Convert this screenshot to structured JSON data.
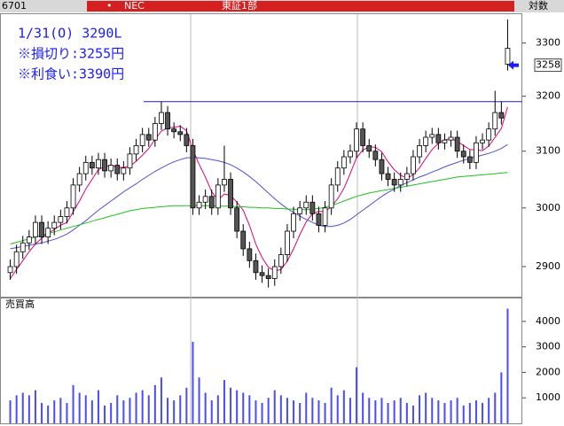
{
  "header": {
    "code": "6701",
    "bullet": "•",
    "name": "NEC",
    "market": "東証1部",
    "scale_mode": "対数"
  },
  "chart_data": [
    {
      "type": "candlestick",
      "annotations": [
        "1/31(O) 3290L",
        "※損切り:3255円",
        "※利食い:3390円"
      ],
      "open": [
        2890,
        2900,
        2925,
        2940,
        2950,
        2975,
        2950,
        2965,
        2975,
        2985,
        3000,
        3040,
        3060,
        3080,
        3070,
        3085,
        3065,
        3075,
        3060,
        3070,
        3095,
        3110,
        3130,
        3120,
        3150,
        3170,
        3140,
        3135,
        3130,
        3110,
        3000,
        3010,
        3020,
        3000,
        3040,
        3050,
        3000,
        2960,
        2930,
        2910,
        2890,
        2885,
        2880,
        2900,
        2920,
        2960,
        2990,
        3000,
        3010,
        2990,
        2970,
        3000,
        3040,
        3070,
        3090,
        3100,
        3140,
        3110,
        3100,
        3085,
        3060,
        3050,
        3040,
        3050,
        3060,
        3090,
        3110,
        3125,
        3130,
        3115,
        3120,
        3125,
        3100,
        3090,
        3080,
        3115,
        3120,
        3140,
        3170,
        3260
      ],
      "high": [
        2912,
        2937,
        2952,
        2962,
        2987,
        2987,
        2977,
        2987,
        2997,
        3012,
        3052,
        3072,
        3092,
        3092,
        3097,
        3097,
        3087,
        3087,
        3082,
        3107,
        3122,
        3142,
        3142,
        3162,
        3190,
        3182,
        3152,
        3147,
        3142,
        3122,
        3022,
        3032,
        3032,
        3052,
        3110,
        3062,
        3012,
        2972,
        2942,
        2922,
        2902,
        2897,
        2912,
        2932,
        2972,
        3002,
        3012,
        3022,
        3022,
        3002,
        3012,
        3052,
        3082,
        3102,
        3112,
        3152,
        3152,
        3122,
        3112,
        3097,
        3072,
        3062,
        3062,
        3072,
        3102,
        3122,
        3137,
        3142,
        3142,
        3132,
        3137,
        3137,
        3112,
        3102,
        3127,
        3132,
        3152,
        3210,
        3190,
        3345
      ],
      "low": [
        2878,
        2888,
        2913,
        2928,
        2938,
        2938,
        2938,
        2953,
        2963,
        2973,
        2988,
        3028,
        3048,
        3058,
        3058,
        3053,
        3053,
        3048,
        3048,
        3058,
        3083,
        3098,
        3108,
        3108,
        3138,
        3128,
        3123,
        3118,
        3098,
        2988,
        2988,
        2998,
        2988,
        2988,
        3028,
        2988,
        2948,
        2918,
        2898,
        2878,
        2873,
        2865,
        2868,
        2888,
        2908,
        2948,
        2978,
        2988,
        2978,
        2958,
        2958,
        2988,
        3028,
        3058,
        3078,
        3088,
        3098,
        3088,
        3073,
        3048,
        3038,
        3028,
        3028,
        3038,
        3048,
        3078,
        3098,
        3113,
        3103,
        3103,
        3108,
        3088,
        3078,
        3068,
        3068,
        3103,
        3108,
        3128,
        3148,
        3248
      ],
      "close": [
        2900,
        2925,
        2940,
        2950,
        2975,
        2950,
        2965,
        2975,
        2985,
        3000,
        3040,
        3060,
        3080,
        3070,
        3085,
        3065,
        3075,
        3060,
        3070,
        3095,
        3110,
        3130,
        3120,
        3150,
        3170,
        3140,
        3135,
        3130,
        3110,
        3000,
        3010,
        3020,
        3000,
        3040,
        3050,
        3000,
        2960,
        2930,
        2910,
        2890,
        2885,
        2880,
        2900,
        2920,
        2960,
        2990,
        3000,
        3010,
        2990,
        2970,
        3000,
        3040,
        3070,
        3090,
        3100,
        3140,
        3110,
        3100,
        3085,
        3060,
        3050,
        3040,
        3050,
        3060,
        3090,
        3110,
        3125,
        3130,
        3115,
        3120,
        3125,
        3100,
        3090,
        3080,
        3115,
        3120,
        3140,
        3170,
        3160,
        3290
      ],
      "series": [
        {
          "color": "#e0007a",
          "values": [
            2880,
            2895,
            2910,
            2925,
            2938,
            2948,
            2956,
            2963,
            2970,
            2975,
            2993,
            3012,
            3033,
            3050,
            3067,
            3072,
            3075,
            3071,
            3071,
            3073,
            3082,
            3093,
            3105,
            3121,
            3136,
            3142,
            3143,
            3145,
            3137,
            3103,
            3077,
            3054,
            3028,
            3014,
            3024,
            3022,
            3010,
            2996,
            2970,
            2938,
            2915,
            2899,
            2893,
            2895,
            2909,
            2930,
            2954,
            2976,
            2990,
            2994,
            2994,
            3002,
            3016,
            3034,
            3060,
            3088,
            3102,
            3108,
            3107,
            3099,
            3081,
            3067,
            3057,
            3052,
            3058,
            3070,
            3087,
            3103,
            3114,
            3120,
            3123,
            3118,
            3110,
            3103,
            3102,
            3101,
            3109,
            3125,
            3141,
            3180
          ]
        },
        {
          "color": "#5050d0",
          "values": [
            2930,
            2932,
            2934,
            2936,
            2938,
            2940,
            2943,
            2946,
            2950,
            2955,
            2962,
            2970,
            2978,
            2987,
            2996,
            3004,
            3012,
            3020,
            3028,
            3035,
            3042,
            3050,
            3057,
            3064,
            3070,
            3076,
            3081,
            3085,
            3088,
            3089,
            3088,
            3087,
            3085,
            3083,
            3080,
            3076,
            3070,
            3063,
            3055,
            3046,
            3036,
            3026,
            3016,
            3007,
            2999,
            2992,
            2986,
            2980,
            2975,
            2970,
            2968,
            2968,
            2970,
            2974,
            2980,
            2988,
            2996,
            3004,
            3012,
            3020,
            3027,
            3033,
            3039,
            3044,
            3049,
            3054,
            3058,
            3063,
            3067,
            3072,
            3076,
            3080,
            3084,
            3087,
            3090,
            3093,
            3096,
            3100,
            3105,
            3112
          ]
        },
        {
          "color": "#20c020",
          "values": [
            2938,
            2941,
            2944,
            2947,
            2950,
            2953,
            2956,
            2959,
            2962,
            2965,
            2968,
            2971,
            2974,
            2977,
            2980,
            2983,
            2986,
            2989,
            2992,
            2995,
            2997,
            2999,
            3000,
            3001,
            3002,
            3003,
            3004,
            3004,
            3004,
            3004,
            3004,
            3004,
            3004,
            3003,
            3003,
            3003,
            3002,
            3002,
            3001,
            3001,
            3000,
            3000,
            2999,
            2999,
            2998,
            2998,
            2997,
            2997,
            2998,
            2999,
            3001,
            3004,
            3008,
            3012,
            3016,
            3020,
            3023,
            3026,
            3028,
            3030,
            3032,
            3034,
            3036,
            3038,
            3040,
            3042,
            3044,
            3046,
            3048,
            3050,
            3052,
            3054,
            3055,
            3056,
            3057,
            3058,
            3059,
            3060,
            3061,
            3062
          ]
        }
      ],
      "hline": {
        "value": 3190,
        "color": "#2020a0"
      },
      "price_marker": 3258,
      "log_scale": true,
      "ylim": [
        2850,
        3352
      ],
      "yticks": [
        2900,
        3000,
        3100,
        3200,
        3300
      ]
    },
    {
      "type": "bar",
      "title": "売買高",
      "color": "#4a4aff",
      "values": [
        900,
        1100,
        1200,
        1100,
        1300,
        800,
        700,
        900,
        1000,
        800,
        1500,
        1200,
        1100,
        900,
        1300,
        700,
        800,
        1100,
        900,
        1000,
        1200,
        1300,
        1100,
        1500,
        1800,
        1000,
        900,
        1100,
        1400,
        3200,
        1800,
        1200,
        900,
        1100,
        1700,
        1400,
        1300,
        1200,
        1100,
        900,
        800,
        1000,
        1300,
        1100,
        1000,
        900,
        800,
        1200,
        1000,
        900,
        800,
        1400,
        1100,
        1300,
        1000,
        2200,
        1200,
        1000,
        900,
        1000,
        800,
        900,
        1000,
        800,
        700,
        1100,
        1200,
        1000,
        900,
        800,
        900,
        1000,
        700,
        800,
        900,
        800,
        1000,
        1200,
        2000,
        4500
      ],
      "ylim": [
        0,
        4900
      ],
      "yticks": [
        1000,
        2000,
        3000,
        4000
      ]
    }
  ]
}
